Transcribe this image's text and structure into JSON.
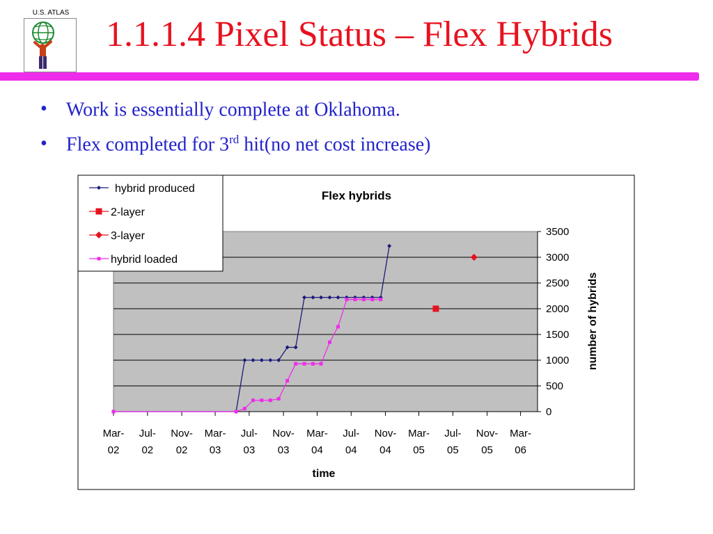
{
  "logo": {
    "text": "U.S. ATLAS"
  },
  "slide": {
    "title": "1.1.1.4 Pixel Status – Flex Hybrids",
    "bullets": [
      {
        "before": "Work is essentially complete at Oklahoma.",
        "sup": "",
        "after": ""
      },
      {
        "before": "Flex completed for 3",
        "sup": "rd",
        "after": " hit(no net cost increase)"
      }
    ]
  },
  "chart_data": {
    "type": "line",
    "title": "Flex hybrids",
    "xlabel": "time",
    "ylabel": "number of hybrids",
    "ylim": [
      0,
      3500
    ],
    "yticks": [
      0,
      500,
      1000,
      1500,
      2000,
      2500,
      3000,
      3500
    ],
    "xlim": [
      "2002-03-01",
      "2006-05-01"
    ],
    "xticks": [
      {
        "date": "2002-03-01",
        "line1": "Mar-",
        "line2": "02"
      },
      {
        "date": "2002-07-01",
        "line1": "Jul-",
        "line2": "02"
      },
      {
        "date": "2002-11-01",
        "line1": "Nov-",
        "line2": "02"
      },
      {
        "date": "2003-03-01",
        "line1": "Mar-",
        "line2": "03"
      },
      {
        "date": "2003-07-01",
        "line1": "Jul-",
        "line2": "03"
      },
      {
        "date": "2003-11-01",
        "line1": "Nov-",
        "line2": "03"
      },
      {
        "date": "2004-03-01",
        "line1": "Mar-",
        "line2": "04"
      },
      {
        "date": "2004-07-01",
        "line1": "Jul-",
        "line2": "04"
      },
      {
        "date": "2004-11-01",
        "line1": "Nov-",
        "line2": "04"
      },
      {
        "date": "2005-03-01",
        "line1": "Mar-",
        "line2": "05"
      },
      {
        "date": "2005-07-01",
        "line1": "Jul-",
        "line2": "05"
      },
      {
        "date": "2005-11-01",
        "line1": "Nov-",
        "line2": "05"
      },
      {
        "date": "2006-03-01",
        "line1": "Mar-",
        "line2": "06"
      }
    ],
    "grid": true,
    "legend": "top-left",
    "series": [
      {
        "name": "hybrid produced",
        "color": "#1a1a7a",
        "marker": "diamond-small",
        "line": true,
        "points": [
          [
            "2002-03-01",
            0
          ],
          [
            "2003-05-15",
            0
          ],
          [
            "2003-06-15",
            1000
          ],
          [
            "2003-07-15",
            1000
          ],
          [
            "2003-08-15",
            1000
          ],
          [
            "2003-09-15",
            1000
          ],
          [
            "2003-10-15",
            1000
          ],
          [
            "2003-11-15",
            1250
          ],
          [
            "2003-12-15",
            1250
          ],
          [
            "2004-01-15",
            2220
          ],
          [
            "2004-02-15",
            2220
          ],
          [
            "2004-03-15",
            2220
          ],
          [
            "2004-04-15",
            2220
          ],
          [
            "2004-05-15",
            2220
          ],
          [
            "2004-06-15",
            2220
          ],
          [
            "2004-07-15",
            2220
          ],
          [
            "2004-08-15",
            2220
          ],
          [
            "2004-09-15",
            2220
          ],
          [
            "2004-10-15",
            2220
          ],
          [
            "2004-11-15",
            3220
          ]
        ]
      },
      {
        "name": "2-layer",
        "color": "#e8121f",
        "marker": "square",
        "line": false,
        "points": [
          [
            "2005-05-01",
            2000
          ]
        ]
      },
      {
        "name": "3-layer",
        "color": "#e8121f",
        "marker": "diamond",
        "line": false,
        "points": [
          [
            "2005-09-15",
            3000
          ]
        ]
      },
      {
        "name": "hybrid loaded",
        "color": "#ee2dea",
        "marker": "square-small",
        "line": true,
        "points": [
          [
            "2002-03-01",
            0
          ],
          [
            "2003-05-15",
            0
          ],
          [
            "2003-06-15",
            60
          ],
          [
            "2003-07-15",
            220
          ],
          [
            "2003-08-15",
            220
          ],
          [
            "2003-09-15",
            220
          ],
          [
            "2003-10-15",
            250
          ],
          [
            "2003-11-15",
            600
          ],
          [
            "2003-12-15",
            930
          ],
          [
            "2004-01-15",
            930
          ],
          [
            "2004-02-15",
            930
          ],
          [
            "2004-03-15",
            930
          ],
          [
            "2004-04-15",
            1350
          ],
          [
            "2004-05-15",
            1650
          ],
          [
            "2004-06-15",
            2180
          ],
          [
            "2004-07-15",
            2180
          ],
          [
            "2004-08-15",
            2180
          ],
          [
            "2004-09-15",
            2180
          ],
          [
            "2004-10-15",
            2180
          ]
        ]
      }
    ]
  }
}
